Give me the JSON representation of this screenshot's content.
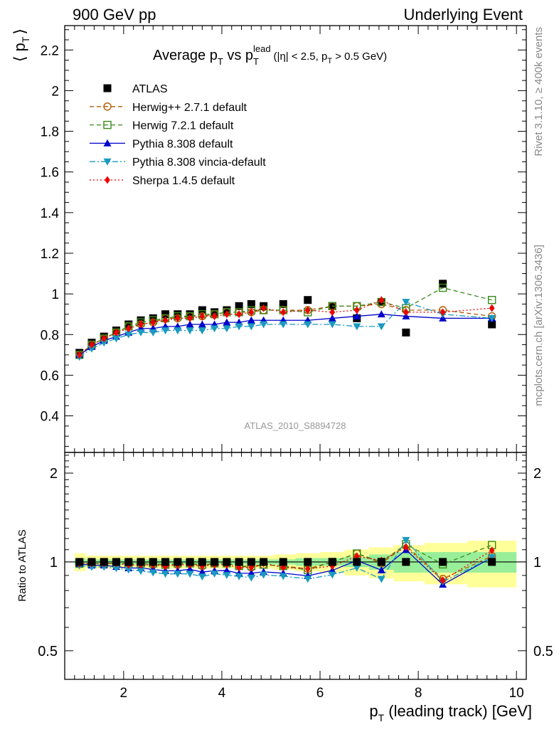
{
  "header": {
    "left": "900 GeV pp",
    "right": "Underlying Event",
    "side_rivet": "Rivet 3.1.10, ≥ 400k events",
    "side_mcplots": "mcplots.cern.ch [arXiv:1306.3436]"
  },
  "chart_data": [
    {
      "type": "scatter",
      "title_main": "Average p",
      "title_sub": "T",
      "title_vs": " vs p",
      "title_sup": "lead",
      "title_sub2": "T",
      "title_cut": "(|η| < 2.5, p",
      "title_cut_sub": "T",
      "title_cut_end": " > 0.5 GeV)",
      "ylabel": "⟨ p",
      "ylabel_sub": "T",
      "ylabel_end": "⟩",
      "watermark": "ATLAS_2010_S8894728",
      "xlim": [
        0.8,
        10.2
      ],
      "ylim": [
        0.22,
        2.32
      ],
      "yticks": [
        {
          "v": 0.4,
          "label": "0.4"
        },
        {
          "v": 0.6,
          "label": "0.6"
        },
        {
          "v": 0.8,
          "label": "0.8"
        },
        {
          "v": 1.0,
          "label": "1"
        },
        {
          "v": 1.2,
          "label": "1.2"
        },
        {
          "v": 1.4,
          "label": "1.4"
        },
        {
          "v": 1.6,
          "label": "1.6"
        },
        {
          "v": 1.8,
          "label": "1.8"
        },
        {
          "v": 2.0,
          "label": "2"
        },
        {
          "v": 2.2,
          "label": "2.2"
        }
      ],
      "x": [
        1.1,
        1.35,
        1.6,
        1.85,
        2.1,
        2.35,
        2.6,
        2.85,
        3.1,
        3.35,
        3.6,
        3.85,
        4.1,
        4.35,
        4.6,
        4.85,
        5.25,
        5.75,
        6.25,
        6.75,
        7.25,
        7.75,
        8.5,
        9.5
      ],
      "series": [
        {
          "name": "ATLAS",
          "color": "#000000",
          "marker": "square-filled",
          "line": "none",
          "values": [
            0.71,
            0.76,
            0.79,
            0.82,
            0.85,
            0.87,
            0.88,
            0.9,
            0.9,
            0.9,
            0.92,
            0.91,
            0.92,
            0.94,
            0.95,
            0.94,
            0.95,
            0.97,
            0.94,
            0.88,
            0.96,
            0.81,
            1.05,
            0.85
          ]
        },
        {
          "name": "Herwig++ 2.7.1 default",
          "color": "#b35a00",
          "marker": "circle-open",
          "line": "dashed",
          "values": [
            0.7,
            0.75,
            0.78,
            0.81,
            0.84,
            0.85,
            0.86,
            0.88,
            0.88,
            0.89,
            0.89,
            0.9,
            0.91,
            0.91,
            0.91,
            0.92,
            0.92,
            0.92,
            0.94,
            0.94,
            0.95,
            0.92,
            0.92,
            0.89
          ]
        },
        {
          "name": "Herwig 7.2.1 default",
          "color": "#3a8a1a",
          "marker": "square-open",
          "line": "dashed",
          "values": [
            0.7,
            0.75,
            0.78,
            0.81,
            0.84,
            0.86,
            0.87,
            0.88,
            0.89,
            0.89,
            0.9,
            0.9,
            0.91,
            0.91,
            0.92,
            0.92,
            0.92,
            0.91,
            0.94,
            0.94,
            0.96,
            0.93,
            1.03,
            0.97
          ]
        },
        {
          "name": "Pythia 8.308 default",
          "color": "#0000cc",
          "marker": "triangle-up",
          "line": "solid",
          "values": [
            0.7,
            0.74,
            0.77,
            0.79,
            0.81,
            0.83,
            0.83,
            0.84,
            0.84,
            0.85,
            0.85,
            0.85,
            0.86,
            0.86,
            0.87,
            0.87,
            0.87,
            0.87,
            0.88,
            0.89,
            0.9,
            0.89,
            0.88,
            0.88
          ]
        },
        {
          "name": "Pythia 8.308 vincia-default",
          "color": "#1a9ac0",
          "marker": "triangle-down",
          "line": "dashdot",
          "values": [
            0.69,
            0.73,
            0.76,
            0.78,
            0.8,
            0.81,
            0.81,
            0.82,
            0.82,
            0.82,
            0.82,
            0.83,
            0.83,
            0.84,
            0.84,
            0.85,
            0.85,
            0.85,
            0.85,
            0.84,
            0.84,
            0.96,
            0.9,
            0.88
          ]
        },
        {
          "name": "Sherpa 1.4.5 default",
          "color": "#ee0000",
          "marker": "diamond",
          "line": "dotted",
          "values": [
            0.7,
            0.75,
            0.78,
            0.81,
            0.83,
            0.85,
            0.86,
            0.87,
            0.88,
            0.88,
            0.89,
            0.89,
            0.9,
            0.9,
            0.91,
            0.93,
            0.91,
            0.92,
            0.91,
            0.92,
            0.97,
            0.91,
            0.91,
            0.93
          ]
        }
      ]
    },
    {
      "type": "scatter",
      "name": "ratio",
      "ylabel": "Ratio to ATLAS",
      "xlabel": "p",
      "xlabel_sub": "T",
      "xlabel_end": " (leading track) [GeV]",
      "ylog": true,
      "ylim": [
        0.4,
        2.35
      ],
      "yticks": [
        {
          "v": 0.5,
          "label": "0.5"
        },
        {
          "v": 1,
          "label": "1"
        },
        {
          "v": 2,
          "label": "2"
        }
      ],
      "xticks": [
        {
          "v": 2,
          "label": "2"
        },
        {
          "v": 4,
          "label": "4"
        },
        {
          "v": 6,
          "label": "6"
        },
        {
          "v": 8,
          "label": "8"
        },
        {
          "v": 10,
          "label": "10"
        }
      ],
      "band_inner": [
        0.03,
        0.02,
        0.02,
        0.02,
        0.02,
        0.02,
        0.02,
        0.02,
        0.02,
        0.02,
        0.02,
        0.02,
        0.02,
        0.02,
        0.02,
        0.02,
        0.02,
        0.03,
        0.03,
        0.04,
        0.06,
        0.08,
        0.08,
        0.08
      ],
      "band_outer": [
        0.07,
        0.05,
        0.05,
        0.05,
        0.05,
        0.05,
        0.05,
        0.05,
        0.05,
        0.05,
        0.05,
        0.05,
        0.05,
        0.05,
        0.05,
        0.05,
        0.06,
        0.07,
        0.08,
        0.1,
        0.12,
        0.14,
        0.16,
        0.18
      ]
    }
  ]
}
